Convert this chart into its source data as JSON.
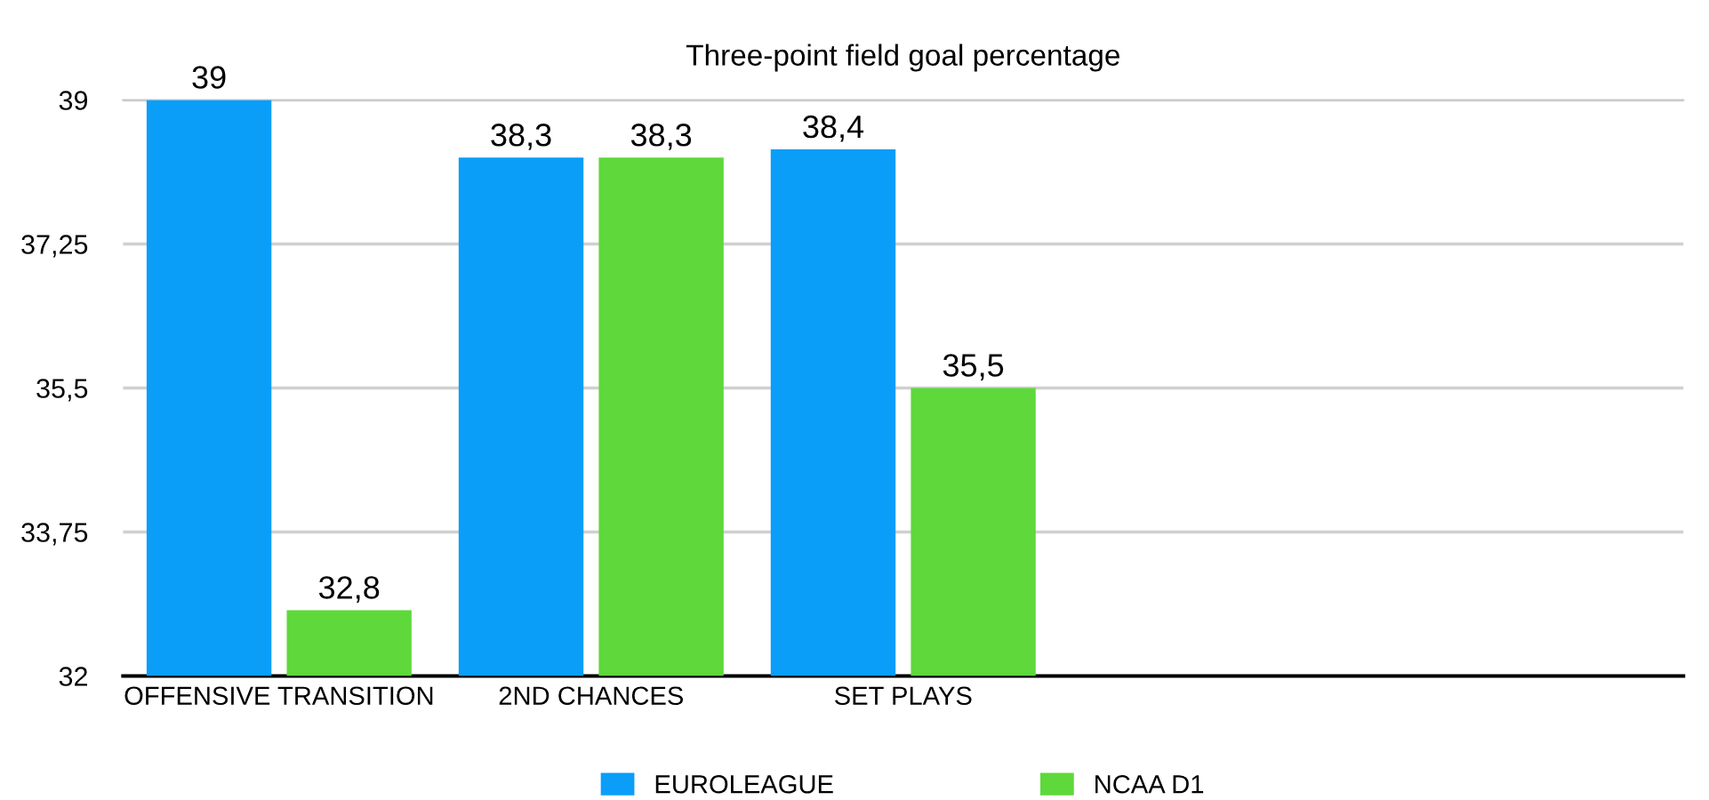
{
  "chart_data": {
    "type": "bar",
    "title": "Three-point field goal percentage",
    "categories": [
      "OFFENSIVE TRANSITION",
      "2ND CHANCES",
      "SET PLAYS",
      null,
      null
    ],
    "series": [
      {
        "name": "EUROLEAGUE",
        "color": "#0a9ef8",
        "values": [
          39,
          38.3,
          38.4,
          null,
          null
        ],
        "value_labels": [
          "39",
          "38,3",
          "38,4",
          null,
          null
        ]
      },
      {
        "name": "NCAA D1",
        "color": "#5ed83a",
        "values": [
          32.8,
          38.3,
          35.5,
          null,
          null
        ],
        "value_labels": [
          "32,8",
          "38,3",
          "35,5",
          null,
          null
        ]
      }
    ],
    "ylim": [
      32,
      39
    ],
    "yticks": [
      32,
      {
        "value": 33.75,
        "label": "33,75"
      },
      {
        "value": 35.5,
        "label": "35,5"
      },
      {
        "value": 37.25,
        "label": "37,25"
      },
      39
    ],
    "grid": "y",
    "legend": "bottom"
  }
}
